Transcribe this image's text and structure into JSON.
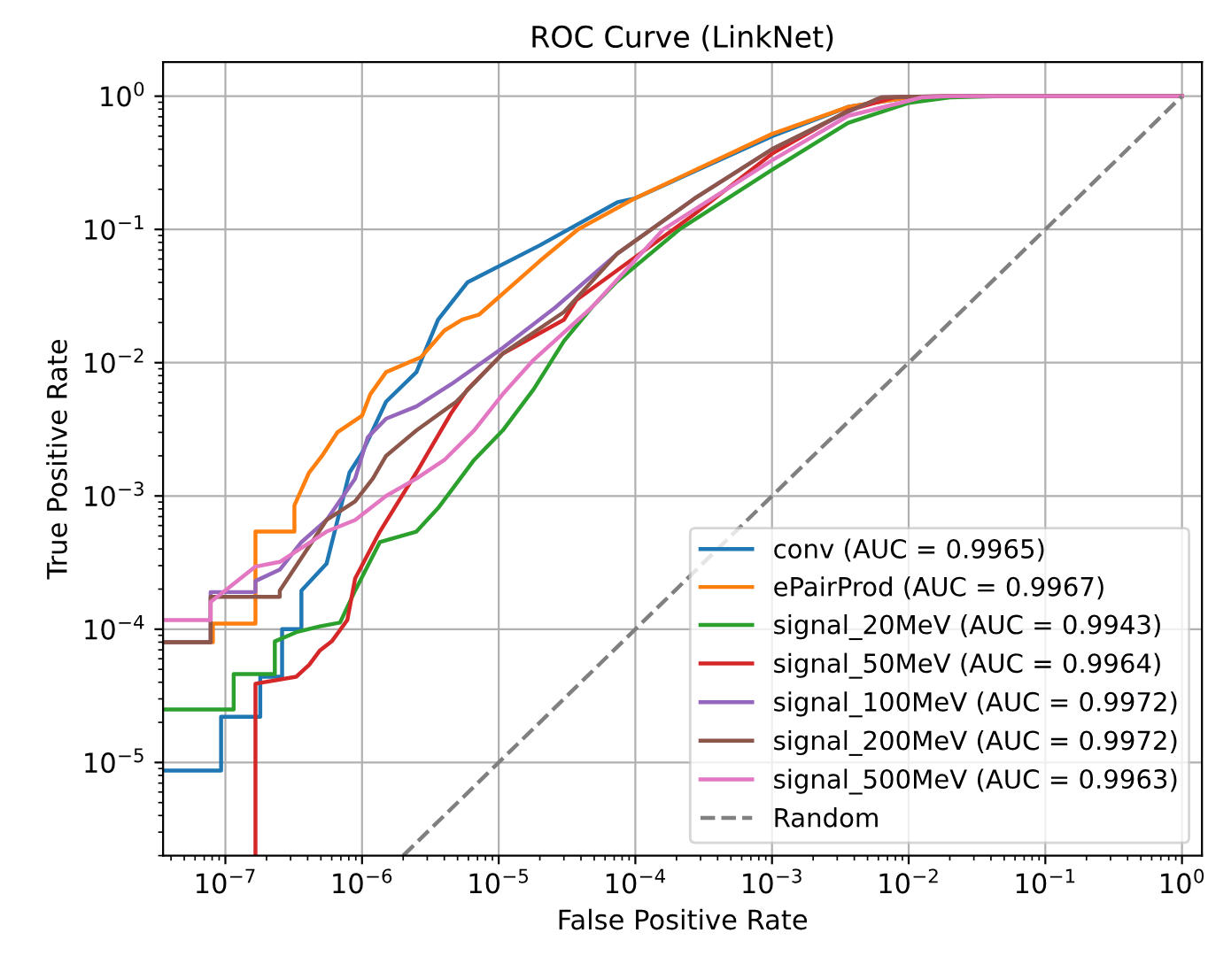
{
  "chart_data": {
    "type": "line",
    "title": "ROC Curve (LinkNet)",
    "xlabel": "False Positive Rate",
    "ylabel": "True Positive Rate",
    "log": "xy",
    "grid": true,
    "legend": "bottom right",
    "line_style": "solid",
    "xlim": [
      3.5e-08,
      1.4
    ],
    "ylim": [
      2e-06,
      1.8
    ],
    "xticks": [
      {
        "value": 1e-07,
        "label": "10$^{−7}$"
      },
      {
        "value": 1e-06,
        "label": "10$^{−6}$"
      },
      {
        "value": 1e-05,
        "label": "10$^{−5}$"
      },
      {
        "value": 0.0001,
        "label": "10$^{−4}$"
      },
      {
        "value": 0.001,
        "label": "10$^{−3}$"
      },
      {
        "value": 0.01,
        "label": "10$^{−2}$"
      },
      {
        "value": 0.1,
        "label": "10$^{−1}$"
      },
      {
        "value": 1,
        "label": "10$^{0}$"
      }
    ],
    "yticks": [
      {
        "value": 1e-05,
        "label": "10$^{−5}$"
      },
      {
        "value": 0.0001,
        "label": "10$^{−4}$"
      },
      {
        "value": 0.001,
        "label": "10$^{−3}$"
      },
      {
        "value": 0.01,
        "label": "10$^{−2}$"
      },
      {
        "value": 0.1,
        "label": "10$^{−1}$"
      },
      {
        "value": 1,
        "label": "10$^{0}$"
      }
    ],
    "series": [
      {
        "name": "conv (AUC = 0.9965)",
        "color": "#1f77b4",
        "x": [
          3.5e-08,
          9.3e-08,
          9.3e-08,
          1.8e-07,
          1.8e-07,
          2.6e-07,
          2.6e-07,
          3.6e-07,
          3.6e-07,
          5.5e-07,
          8.1e-07,
          1e-06,
          1.5e-06,
          2.5e-06,
          3.6e-06,
          5.9e-06,
          2e-05,
          7.4e-05,
          9.8e-05,
          0.001,
          0.0036,
          0.01
        ],
        "values": [
          8.7e-06,
          8.7e-06,
          2.2e-05,
          2.2e-05,
          4.4e-05,
          4.4e-05,
          0.0001,
          0.0001,
          0.000195,
          0.00031,
          0.0015,
          0.0021,
          0.0051,
          0.0085,
          0.021,
          0.04,
          0.076,
          0.16,
          0.17,
          0.5,
          0.83,
          0.98
        ]
      },
      {
        "name": "ePairProd (AUC = 0.9967)",
        "color": "#ff7f0e",
        "x": [
          3.5e-08,
          8.1e-08,
          8.1e-08,
          1.66e-07,
          1.66e-07,
          3.2e-07,
          3.2e-07,
          4.1e-07,
          5.1e-07,
          6.6e-07,
          1e-06,
          1.15e-06,
          1.5e-06,
          2.7e-06,
          4e-06,
          5.4e-06,
          7.2e-06,
          2e-05,
          3.8e-05,
          9.8e-05,
          0.001,
          0.0036,
          0.01,
          0.02,
          1
        ],
        "values": [
          8e-05,
          8e-05,
          0.00011,
          0.00011,
          0.00054,
          0.00054,
          0.00085,
          0.0015,
          0.002,
          0.003,
          0.004,
          0.0058,
          0.0085,
          0.011,
          0.0174,
          0.021,
          0.023,
          0.058,
          0.1,
          0.17,
          0.52,
          0.83,
          0.98,
          1,
          1
        ]
      },
      {
        "name": "signal_20MeV (AUC = 0.9943)",
        "color": "#2ca02c",
        "x": [
          3.5e-08,
          1.15e-07,
          1.15e-07,
          2.3e-07,
          2.3e-07,
          3.3e-07,
          4.9e-07,
          6.9e-07,
          8.9e-07,
          1.35e-06,
          2.5e-06,
          3.6e-06,
          6.6e-06,
          1.07e-05,
          1.8e-05,
          3e-05,
          4.8e-05,
          7.2e-05,
          0.00021,
          0.001,
          0.0036,
          0.01,
          0.02,
          0.05,
          1
        ],
        "values": [
          2.5e-05,
          2.5e-05,
          4.6e-05,
          4.6e-05,
          8.1e-05,
          9.5e-05,
          0.000105,
          0.000112,
          0.000195,
          0.00045,
          0.00054,
          0.00081,
          0.00186,
          0.0031,
          0.0063,
          0.0145,
          0.026,
          0.04,
          0.1,
          0.28,
          0.63,
          0.89,
          0.98,
          1,
          1
        ]
      },
      {
        "name": "signal_50MeV (AUC = 0.9964)",
        "color": "#d62728",
        "x": [
          1.66e-07,
          1.66e-07,
          3.3e-07,
          4.1e-07,
          4.9e-07,
          6e-07,
          7.8e-07,
          8.9e-07,
          1.35e-06,
          2.5e-06,
          4.5e-06,
          5.9e-06,
          1.07e-05,
          3e-05,
          3.7e-05,
          0.00027,
          0.001,
          0.0036,
          0.0079,
          0.02,
          1
        ],
        "values": [
          2e-06,
          3.9e-05,
          4.4e-05,
          5.4e-05,
          6.9e-05,
          8.1e-05,
          0.000117,
          0.00024,
          0.00054,
          0.0015,
          0.0042,
          0.0063,
          0.0117,
          0.021,
          0.0295,
          0.13,
          0.37,
          0.78,
          0.98,
          1,
          1
        ]
      },
      {
        "name": "signal_100MeV (AUC = 0.9972)",
        "color": "#9467bd",
        "x": [
          3.5e-08,
          7.8e-08,
          7.8e-08,
          1.66e-07,
          1.66e-07,
          2.5e-07,
          3.6e-07,
          5.5e-07,
          8.9e-07,
          1.1e-06,
          1.5e-06,
          2.5e-06,
          4.5e-06,
          1.07e-05,
          2.6e-05,
          7.4e-05,
          0.00027,
          0.001,
          0.0036,
          0.0063,
          0.02,
          1
        ],
        "values": [
          8e-05,
          8e-05,
          0.00019,
          0.00019,
          0.00023,
          0.00028,
          0.00045,
          0.00066,
          0.00135,
          0.00275,
          0.0038,
          0.0047,
          0.0069,
          0.0129,
          0.026,
          0.066,
          0.17,
          0.4,
          0.76,
          0.98,
          1,
          1
        ]
      },
      {
        "name": "signal_200MeV (AUC = 0.9972)",
        "color": "#8c564b",
        "x": [
          3.5e-08,
          7.8e-08,
          7.8e-08,
          2.5e-07,
          2.5e-07,
          5.5e-07,
          8.9e-07,
          1.2e-06,
          1.5e-06,
          2.5e-06,
          4.9e-06,
          1.07e-05,
          3e-05,
          7.4e-05,
          0.00027,
          0.001,
          0.0036,
          0.0063,
          0.02,
          1
        ],
        "values": [
          8e-05,
          8e-05,
          0.000175,
          0.000175,
          0.000195,
          0.00066,
          0.00091,
          0.00135,
          0.002,
          0.0031,
          0.0051,
          0.0117,
          0.024,
          0.066,
          0.17,
          0.4,
          0.77,
          0.98,
          1,
          1
        ]
      },
      {
        "name": "signal_500MeV (AUC = 0.9963)",
        "color": "#e377c2",
        "x": [
          3.5e-08,
          7.8e-08,
          7.8e-08,
          1.66e-07,
          2.5e-07,
          5.5e-07,
          8.9e-07,
          1.5e-06,
          2.5e-06,
          4e-06,
          6.6e-06,
          1.07e-05,
          1.8e-05,
          4.8e-05,
          0.00016,
          0.001,
          0.0036,
          0.0126,
          0.02,
          1
        ],
        "values": [
          0.000117,
          0.000117,
          0.00016,
          0.000295,
          0.00032,
          0.00054,
          0.00066,
          0.001,
          0.00135,
          0.00186,
          0.0031,
          0.0058,
          0.0105,
          0.026,
          0.1,
          0.33,
          0.71,
          0.98,
          1,
          1
        ]
      },
      {
        "name": "Random",
        "color": "#808080",
        "line_style": "dashed",
        "x": [
          2e-06,
          1
        ],
        "values": [
          2e-06,
          1
        ]
      }
    ]
  }
}
